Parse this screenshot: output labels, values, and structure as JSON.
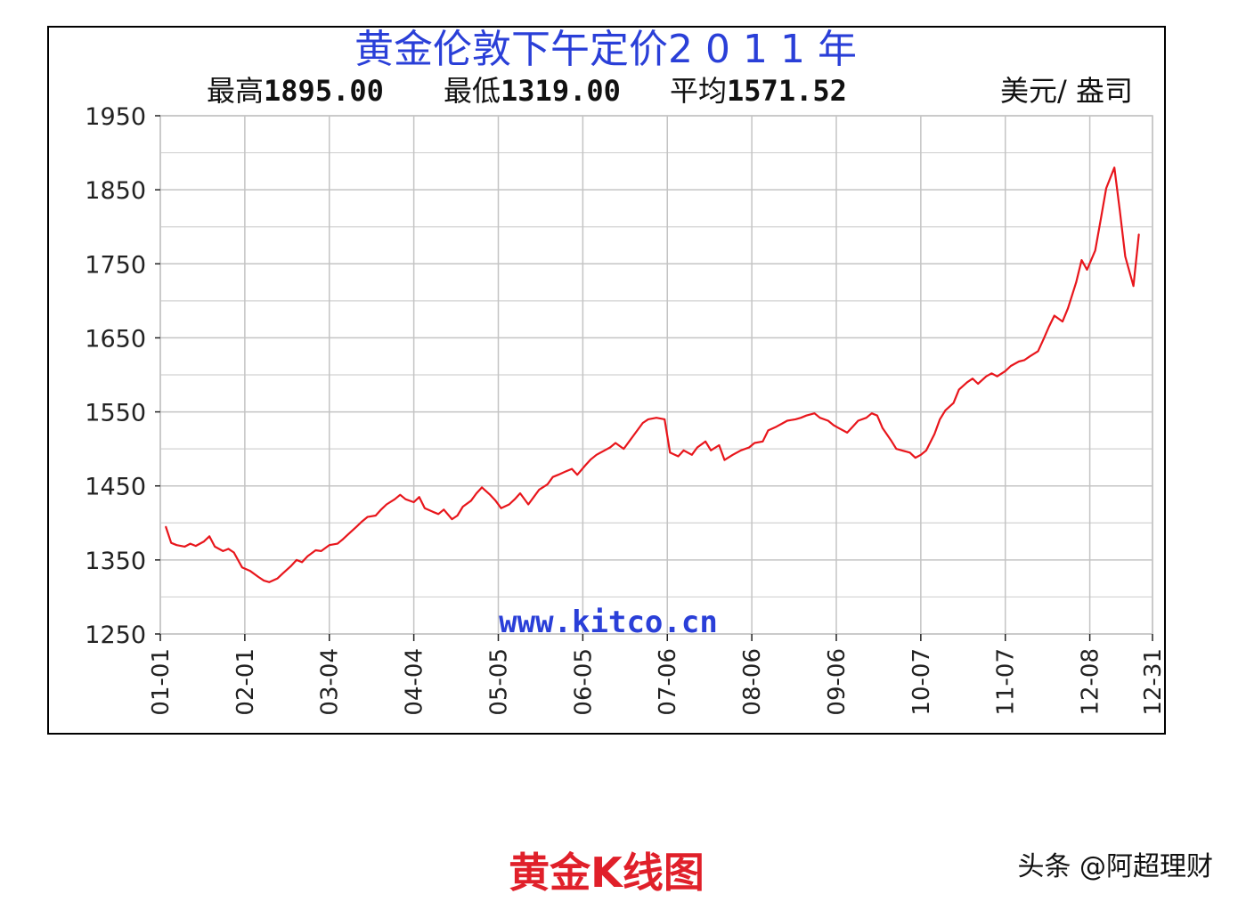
{
  "chart_data": {
    "type": "line",
    "title": "黄金伦敦下午定价2 0 1 1 年",
    "stats": {
      "high_label": "最高",
      "high_value": "1895.00",
      "low_label": "最低",
      "low_value": "1319.00",
      "avg_label": "平均",
      "avg_value": "1571.52"
    },
    "unit": "美元/ 盎司",
    "site": "www.kitco.cn",
    "ylim": [
      1250,
      1950
    ],
    "y_ticks": [
      1950,
      1850,
      1750,
      1650,
      1550,
      1450,
      1350,
      1250
    ],
    "x_range": [
      "2011-01-01",
      "2011-12-31"
    ],
    "x_ticks": [
      {
        "label": "01-01",
        "date": "2011-01-01"
      },
      {
        "label": "02-01",
        "date": "2011-02-01"
      },
      {
        "label": "03-04",
        "date": "2011-03-04"
      },
      {
        "label": "04-04",
        "date": "2011-04-04"
      },
      {
        "label": "05-05",
        "date": "2011-05-05"
      },
      {
        "label": "06-05",
        "date": "2011-06-05"
      },
      {
        "label": "07-06",
        "date": "2011-07-06"
      },
      {
        "label": "08-06",
        "date": "2011-08-06"
      },
      {
        "label": "09-06",
        "date": "2011-09-06"
      },
      {
        "label": "10-07",
        "date": "2011-10-07"
      },
      {
        "label": "11-07",
        "date": "2011-11-07"
      },
      {
        "label": "12-08",
        "date": "2011-12-08"
      },
      {
        "label": "12-31",
        "date": "2011-12-31"
      }
    ],
    "grid": true,
    "series": [
      {
        "color": "#e8161c",
        "points": [
          [
            "2011-01-03",
            1395
          ],
          [
            "2011-01-05",
            1373
          ],
          [
            "2011-01-07",
            1370
          ],
          [
            "2011-01-10",
            1368
          ],
          [
            "2011-01-12",
            1372
          ],
          [
            "2011-01-14",
            1369
          ],
          [
            "2011-01-17",
            1375
          ],
          [
            "2011-01-19",
            1382
          ],
          [
            "2011-01-21",
            1368
          ],
          [
            "2011-01-24",
            1362
          ],
          [
            "2011-01-26",
            1365
          ],
          [
            "2011-01-28",
            1360
          ],
          [
            "2011-01-31",
            1340
          ],
          [
            "2011-02-03",
            1335
          ],
          [
            "2011-02-06",
            1327
          ],
          [
            "2011-02-08",
            1322
          ],
          [
            "2011-02-10",
            1320
          ],
          [
            "2011-02-13",
            1325
          ],
          [
            "2011-02-15",
            1332
          ],
          [
            "2011-02-18",
            1342
          ],
          [
            "2011-02-20",
            1350
          ],
          [
            "2011-02-22",
            1347
          ],
          [
            "2011-02-24",
            1355
          ],
          [
            "2011-02-27",
            1363
          ],
          [
            "2011-03-01",
            1362
          ],
          [
            "2011-03-04",
            1370
          ],
          [
            "2011-03-07",
            1372
          ],
          [
            "2011-03-09",
            1378
          ],
          [
            "2011-03-11",
            1385
          ],
          [
            "2011-03-14",
            1395
          ],
          [
            "2011-03-16",
            1402
          ],
          [
            "2011-03-18",
            1408
          ],
          [
            "2011-03-21",
            1410
          ],
          [
            "2011-03-23",
            1418
          ],
          [
            "2011-03-25",
            1425
          ],
          [
            "2011-03-28",
            1432
          ],
          [
            "2011-03-30",
            1438
          ],
          [
            "2011-04-01",
            1432
          ],
          [
            "2011-04-04",
            1428
          ],
          [
            "2011-04-06",
            1435
          ],
          [
            "2011-04-08",
            1420
          ],
          [
            "2011-04-11",
            1415
          ],
          [
            "2011-04-13",
            1412
          ],
          [
            "2011-04-15",
            1418
          ],
          [
            "2011-04-18",
            1405
          ],
          [
            "2011-04-20",
            1410
          ],
          [
            "2011-04-22",
            1422
          ],
          [
            "2011-04-25",
            1430
          ],
          [
            "2011-04-27",
            1440
          ],
          [
            "2011-04-29",
            1448
          ],
          [
            "2011-05-02",
            1438
          ],
          [
            "2011-05-04",
            1430
          ],
          [
            "2011-05-06",
            1420
          ],
          [
            "2011-05-09",
            1425
          ],
          [
            "2011-05-11",
            1432
          ],
          [
            "2011-05-13",
            1440
          ],
          [
            "2011-05-16",
            1425
          ],
          [
            "2011-05-18",
            1435
          ],
          [
            "2011-05-20",
            1445
          ],
          [
            "2011-05-23",
            1452
          ],
          [
            "2011-05-25",
            1462
          ],
          [
            "2011-05-27",
            1465
          ],
          [
            "2011-05-30",
            1470
          ],
          [
            "2011-06-01",
            1473
          ],
          [
            "2011-06-03",
            1465
          ],
          [
            "2011-06-06",
            1478
          ],
          [
            "2011-06-08",
            1486
          ],
          [
            "2011-06-10",
            1492
          ],
          [
            "2011-06-13",
            1498
          ],
          [
            "2011-06-15",
            1502
          ],
          [
            "2011-06-17",
            1508
          ],
          [
            "2011-06-20",
            1500
          ],
          [
            "2011-06-22",
            1510
          ],
          [
            "2011-06-24",
            1520
          ],
          [
            "2011-06-27",
            1535
          ],
          [
            "2011-06-29",
            1540
          ],
          [
            "2011-07-02",
            1542
          ],
          [
            "2011-07-05",
            1540
          ],
          [
            "2011-07-07",
            1495
          ],
          [
            "2011-07-10",
            1490
          ],
          [
            "2011-07-12",
            1498
          ],
          [
            "2011-07-15",
            1492
          ],
          [
            "2011-07-17",
            1502
          ],
          [
            "2011-07-20",
            1510
          ],
          [
            "2011-07-22",
            1498
          ],
          [
            "2011-07-25",
            1505
          ],
          [
            "2011-07-27",
            1485
          ],
          [
            "2011-07-30",
            1492
          ],
          [
            "2011-08-02",
            1498
          ],
          [
            "2011-08-05",
            1502
          ],
          [
            "2011-08-07",
            1508
          ],
          [
            "2011-08-10",
            1510
          ],
          [
            "2011-08-12",
            1525
          ],
          [
            "2011-08-15",
            1530
          ],
          [
            "2011-08-17",
            1534
          ],
          [
            "2011-08-19",
            1538
          ],
          [
            "2011-08-22",
            1540
          ],
          [
            "2011-08-24",
            1542
          ],
          [
            "2011-08-26",
            1545
          ],
          [
            "2011-08-29",
            1548
          ],
          [
            "2011-08-31",
            1542
          ],
          [
            "2011-09-03",
            1538
          ],
          [
            "2011-09-05",
            1532
          ],
          [
            "2011-09-07",
            1528
          ],
          [
            "2011-09-10",
            1522
          ],
          [
            "2011-09-12",
            1530
          ],
          [
            "2011-09-14",
            1538
          ],
          [
            "2011-09-17",
            1542
          ],
          [
            "2011-09-19",
            1548
          ],
          [
            "2011-09-21",
            1545
          ],
          [
            "2011-09-23",
            1528
          ],
          [
            "2011-09-26",
            1512
          ],
          [
            "2011-09-28",
            1500
          ],
          [
            "2011-09-30",
            1498
          ],
          [
            "2011-10-03",
            1495
          ],
          [
            "2011-10-05",
            1488
          ],
          [
            "2011-10-07",
            1492
          ],
          [
            "2011-10-09",
            1498
          ],
          [
            "2011-10-12",
            1520
          ],
          [
            "2011-10-14",
            1540
          ],
          [
            "2011-10-16",
            1552
          ],
          [
            "2011-10-19",
            1562
          ],
          [
            "2011-10-21",
            1580
          ],
          [
            "2011-10-24",
            1590
          ],
          [
            "2011-10-26",
            1595
          ],
          [
            "2011-10-28",
            1588
          ],
          [
            "2011-10-31",
            1598
          ],
          [
            "2011-11-02",
            1602
          ],
          [
            "2011-11-04",
            1598
          ],
          [
            "2011-11-07",
            1605
          ],
          [
            "2011-11-09",
            1612
          ],
          [
            "2011-11-12",
            1618
          ],
          [
            "2011-11-14",
            1620
          ],
          [
            "2011-11-16",
            1625
          ],
          [
            "2011-11-19",
            1632
          ],
          [
            "2011-11-21",
            1648
          ],
          [
            "2011-11-23",
            1665
          ],
          [
            "2011-11-25",
            1680
          ],
          [
            "2011-11-28",
            1672
          ],
          [
            "2011-11-30",
            1690
          ],
          [
            "2011-12-03",
            1725
          ],
          [
            "2011-12-05",
            1755
          ],
          [
            "2011-12-07",
            1742
          ],
          [
            "2011-12-10",
            1768
          ],
          [
            "2011-12-12",
            1810
          ],
          [
            "2011-12-14",
            1852
          ],
          [
            "2011-12-17",
            1880
          ],
          [
            "2011-12-19",
            1822
          ],
          [
            "2011-12-21",
            1760
          ],
          [
            "2011-12-24",
            1720
          ],
          [
            "2011-12-26",
            1790
          ]
        ]
      }
    ]
  },
  "caption": "黄金K线图",
  "watermark": "头条 @阿超理财"
}
